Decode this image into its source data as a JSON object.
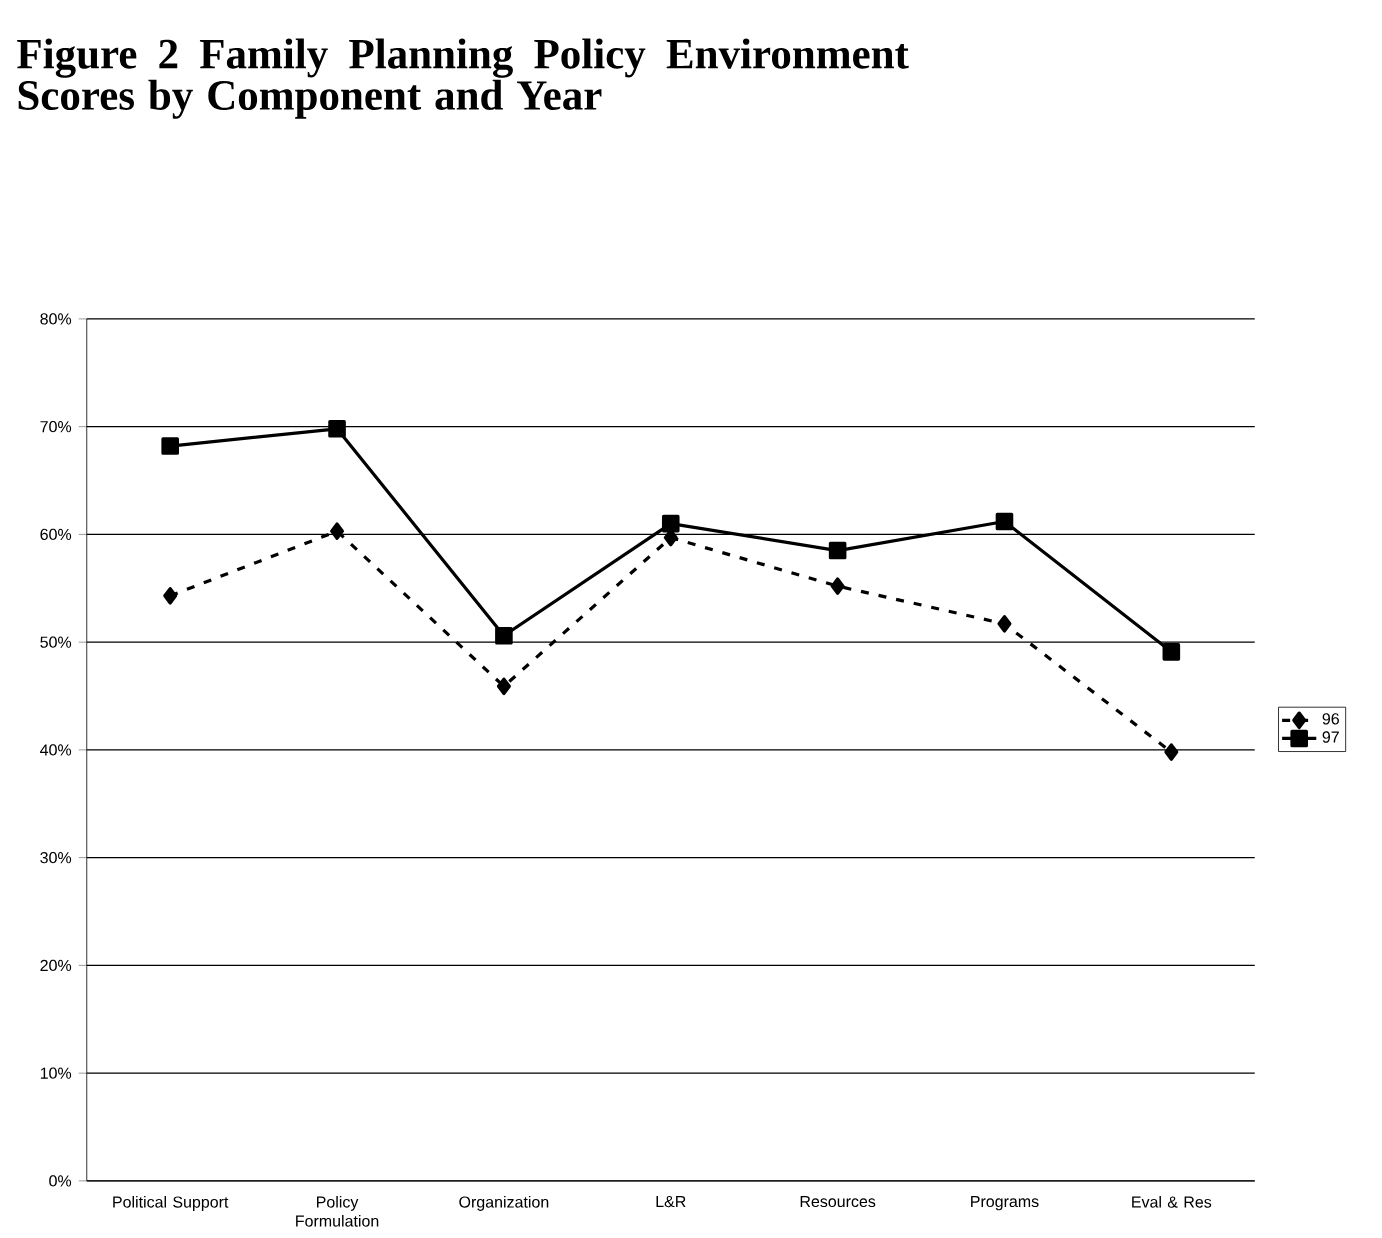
{
  "chart_data": {
    "type": "line",
    "title": "Figure 2 Family Planning Policy Environment Scores by Component and Year",
    "categories": [
      "Political Support",
      "Policy Formulation",
      "Organization",
      "L&R",
      "Resources",
      "Programs",
      "Eval & Res"
    ],
    "series": [
      {
        "name": "96",
        "color": "#000000",
        "marker": "diamond",
        "line_style": "dashed",
        "values": [
          54.3,
          60.3,
          45.9,
          59.7,
          55.2,
          51.7,
          39.8
        ]
      },
      {
        "name": "97",
        "color": "#000000",
        "marker": "square",
        "line_style": "solid",
        "values": [
          68.2,
          69.8,
          50.6,
          61.0,
          58.5,
          61.2,
          49.1
        ]
      }
    ],
    "ylim": [
      0,
      80
    ],
    "yticks": [
      {
        "value": 0,
        "label": "0%"
      },
      {
        "value": 10,
        "label": "10%"
      },
      {
        "value": 20,
        "label": "20%"
      },
      {
        "value": 30,
        "label": "30%"
      },
      {
        "value": 40,
        "label": "40%"
      },
      {
        "value": 50,
        "label": "50%"
      },
      {
        "value": 60,
        "label": "60%"
      },
      {
        "value": 70,
        "label": "70%"
      },
      {
        "value": 80,
        "label": "80%"
      }
    ],
    "grid": "y",
    "legend": "right"
  }
}
